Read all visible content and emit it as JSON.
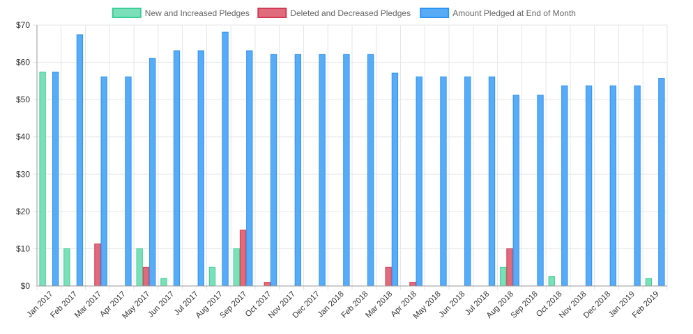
{
  "chart_data": {
    "type": "bar",
    "categories": [
      "Jan 2017",
      "Feb 2017",
      "Mar 2017",
      "Apr 2017",
      "May 2017",
      "Jun 2017",
      "Jul 2017",
      "Aug 2017",
      "Sep 2017",
      "Oct 2017",
      "Nov 2017",
      "Dec 2017",
      "Jan 2018",
      "Feb 2018",
      "Mar 2018",
      "Apr 2018",
      "May 2018",
      "Jun 2018",
      "Jul 2018",
      "Aug 2018",
      "Sep 2018",
      "Oct 2018",
      "Nov 2018",
      "Dec 2018",
      "Jan 2019",
      "Feb 2019"
    ],
    "series": [
      {
        "name": "New and Increased Pledges",
        "color": "#7be0b9",
        "border": "#3ccf95",
        "values": [
          57.4,
          10,
          0,
          0,
          10,
          2,
          0,
          5,
          10,
          0,
          0,
          0,
          0,
          0,
          0,
          0,
          0,
          0,
          0,
          5,
          0,
          2.5,
          0,
          0,
          0,
          2
        ]
      },
      {
        "name": "Deleted and Decreased Pledges",
        "color": "#e06b7b",
        "border": "#d23a52",
        "values": [
          0,
          0,
          11.3,
          0,
          5,
          0,
          0,
          0,
          15,
          1,
          0,
          0,
          0,
          0,
          5,
          1,
          0,
          0,
          0,
          10,
          0,
          0,
          0,
          0,
          0,
          0
        ]
      },
      {
        "name": "Amount Pledged at End of Month",
        "color": "#58acf7",
        "border": "#2d93f0",
        "values": [
          57.4,
          67.4,
          56.1,
          56.1,
          61.1,
          63.1,
          63.1,
          68.1,
          63.1,
          62.1,
          62.1,
          62.1,
          62.1,
          62.1,
          57.1,
          56.1,
          56.1,
          56.1,
          56.1,
          51.2,
          51.2,
          53.7,
          53.7,
          53.7,
          53.7,
          55.7
        ]
      }
    ],
    "y_ticks": [
      "$0",
      "$10",
      "$20",
      "$30",
      "$40",
      "$50",
      "$60",
      "$70"
    ],
    "ylim": [
      0,
      70
    ],
    "grid": true,
    "legend_position": "top"
  }
}
